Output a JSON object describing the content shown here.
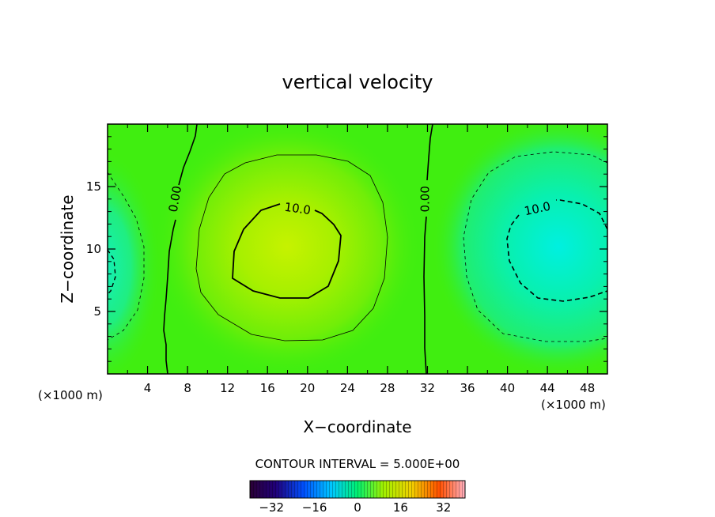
{
  "chart_data": {
    "type": "heatmap",
    "title": "vertical velocity",
    "xlabel": "X−coordinate",
    "ylabel": "Z−coordinate",
    "x_unit_left": "(×1000 m)",
    "x_unit_right": "(×1000 m)",
    "xlim": [
      0,
      50
    ],
    "ylim": [
      0,
      20
    ],
    "xticks": [
      4,
      8,
      12,
      16,
      20,
      24,
      28,
      32,
      36,
      40,
      44,
      48
    ],
    "yticks": [
      5,
      10,
      15
    ],
    "contour_interval_label": "CONTOUR INTERVAL = 5.000E+00",
    "field_extremes": [
      {
        "x": 18,
        "z": 10,
        "value": 12
      },
      {
        "x": 45,
        "z": 10,
        "value": -12
      },
      {
        "x": 0,
        "z": 8.5,
        "value": -8
      }
    ],
    "contour_labels": [
      {
        "text": "0.00",
        "x": 6.8,
        "z": 14,
        "angle": -80
      },
      {
        "text": "10.0",
        "x": 19.0,
        "z": 13.2,
        "angle": 8
      },
      {
        "text": "0.00",
        "x": 31.8,
        "z": 14,
        "angle": -90
      },
      {
        "text": "10.0",
        "x": 43.0,
        "z": 13.2,
        "angle": -12
      }
    ],
    "colorbar": {
      "ticks": [
        -32,
        -16,
        0,
        16,
        32
      ],
      "range": [
        -40,
        40
      ]
    }
  }
}
